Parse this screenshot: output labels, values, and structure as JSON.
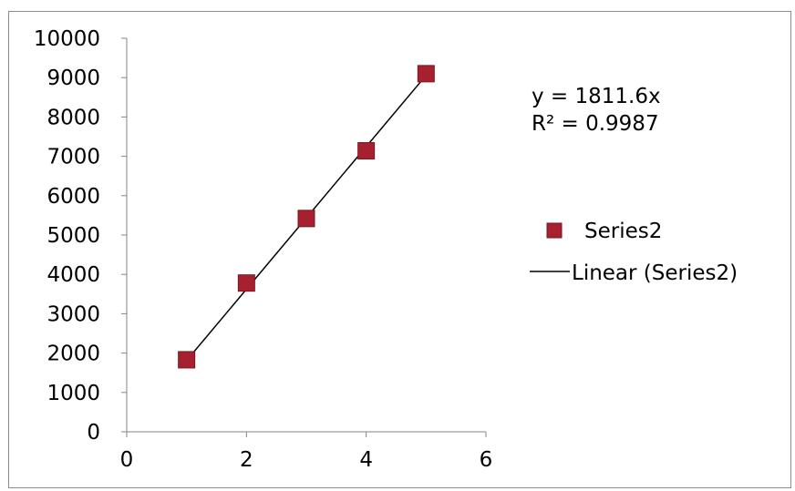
{
  "chart_data": {
    "type": "scatter",
    "title": "",
    "xlabel": "",
    "ylabel": "",
    "xlim": [
      0,
      6
    ],
    "ylim": [
      0,
      10000
    ],
    "x_ticks": [
      "0",
      "2",
      "4",
      "6"
    ],
    "y_ticks": [
      "0",
      "1000",
      "2000",
      "3000",
      "4000",
      "5000",
      "6000",
      "7000",
      "8000",
      "9000",
      "10000"
    ],
    "grid": false,
    "legend_position": "right",
    "series": [
      {
        "name": "Series2",
        "color": "#a6202f",
        "marker": "square",
        "x": [
          1,
          2,
          3,
          4,
          5
        ],
        "y": [
          1830,
          3780,
          5420,
          7140,
          9100
        ]
      }
    ],
    "trendline": {
      "name": "Linear (Series2)",
      "type": "linear",
      "slope": 1811.6,
      "intercept": 0,
      "x_range": [
        1,
        5
      ],
      "color": "#000000",
      "equation_label": "y = 1811.6x",
      "r2_label": "R² = 0.9987"
    }
  }
}
